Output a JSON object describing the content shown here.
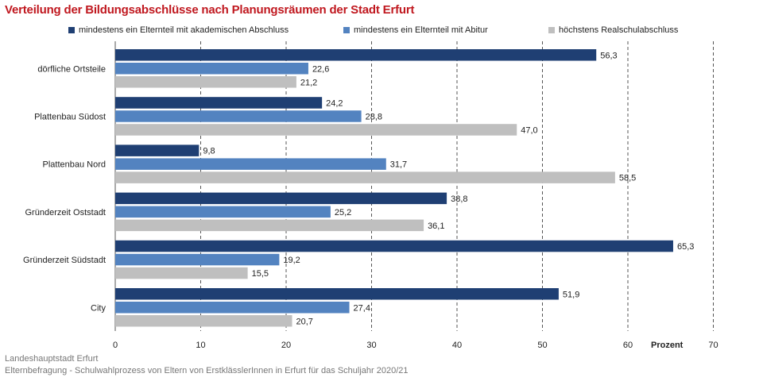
{
  "chart_data": {
    "type": "bar",
    "orientation": "horizontal",
    "title": "Verteilung der Bildungsabschlüsse nach Planungsräumen der Stadt Erfurt",
    "xlabel": "Prozent",
    "xlim": [
      0,
      70
    ],
    "xticks": [
      0,
      10,
      20,
      30,
      40,
      50,
      60,
      70
    ],
    "grid": "vertical dashed",
    "legend_position": "top",
    "categories": [
      "dörfliche Ortsteile",
      "Plattenbau Südost",
      "Plattenbau Nord",
      "Gründerzeit Oststadt",
      "Gründerzeit Südstadt",
      "City"
    ],
    "series": [
      {
        "name": "mindestens ein Elternteil mit akademischen Abschluss",
        "color": "#1f3f73",
        "values": [
          56.3,
          24.2,
          9.8,
          38.8,
          65.3,
          51.9
        ],
        "labels": [
          "56,3",
          "24,2",
          "9,8",
          "38,8",
          "65,3",
          "51,9"
        ]
      },
      {
        "name": "mindestens ein Elternteil mit Abitur",
        "color": "#5383c0",
        "values": [
          22.6,
          28.8,
          31.7,
          25.2,
          19.2,
          27.4
        ],
        "labels": [
          "22,6",
          "28,8",
          "31,7",
          "25,2",
          "19,2",
          "27,4"
        ]
      },
      {
        "name": "höchstens Realschulabschluss",
        "color": "#bfbfbf",
        "values": [
          21.2,
          47.0,
          58.5,
          36.1,
          15.5,
          20.7
        ],
        "labels": [
          "21,2",
          "47,0",
          "58,5",
          "36,1",
          "15,5",
          "20,7"
        ]
      }
    ]
  },
  "source": {
    "line1": "Landeshauptstadt Erfurt",
    "line2": "Elternbefragung - Schulwahlprozess von Eltern von ErstklässlerInnen in Erfurt für das Schuljahr 2020/21"
  }
}
